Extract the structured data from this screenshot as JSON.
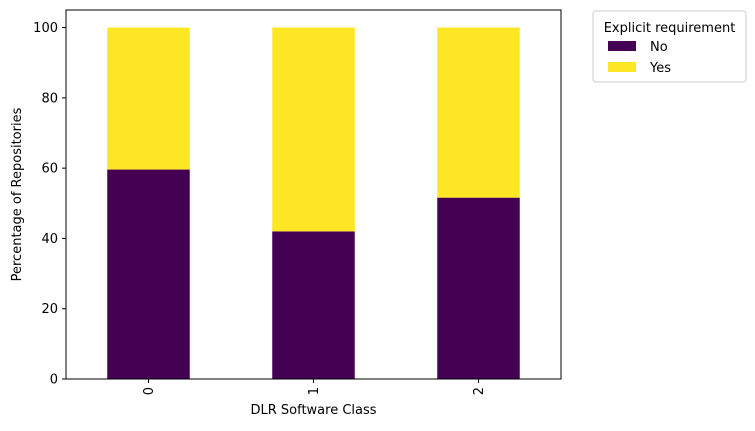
{
  "chart_data": {
    "type": "bar",
    "stacked": true,
    "categories": [
      "0",
      "1",
      "2"
    ],
    "series": [
      {
        "name": "No",
        "values": [
          59.6,
          42.0,
          51.6
        ],
        "color": "#440154"
      },
      {
        "name": "Yes",
        "values": [
          40.4,
          58.0,
          48.4
        ],
        "color": "#fde725"
      }
    ],
    "xlabel": "DLR Software Class",
    "ylabel": "Percentage of Repositories",
    "ylim": [
      0,
      105
    ],
    "yticks": [
      0,
      20,
      40,
      60,
      80,
      100
    ],
    "xtick_rotation": "vertical",
    "grid": false,
    "legend": {
      "title": "Explicit requirement",
      "placement": "outside upper right"
    }
  }
}
